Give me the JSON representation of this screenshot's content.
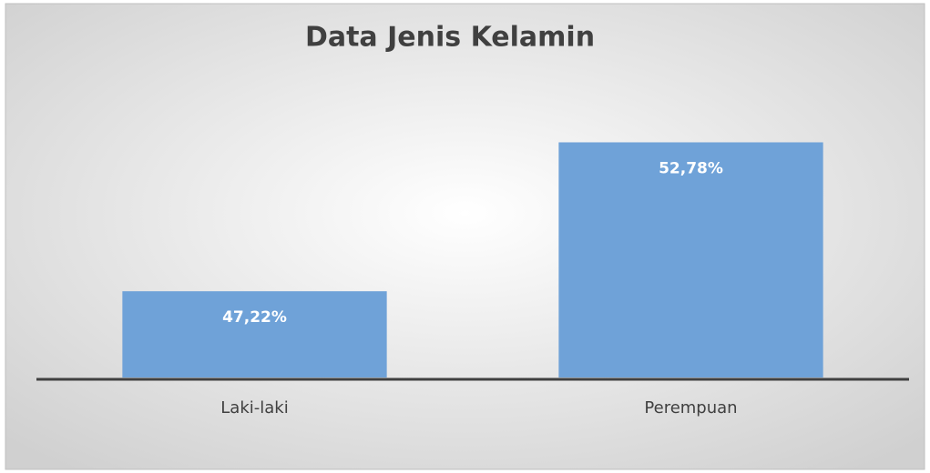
{
  "chart_data": {
    "type": "bar",
    "title": "Data Jenis Kelamin",
    "categories": [
      "Laki-laki",
      "Perempuan"
    ],
    "values": [
      47.22,
      52.78
    ],
    "value_labels": [
      "47,22%",
      "52,78%"
    ],
    "color": "#6fa2d8",
    "ylim": [
      44,
      53
    ]
  }
}
